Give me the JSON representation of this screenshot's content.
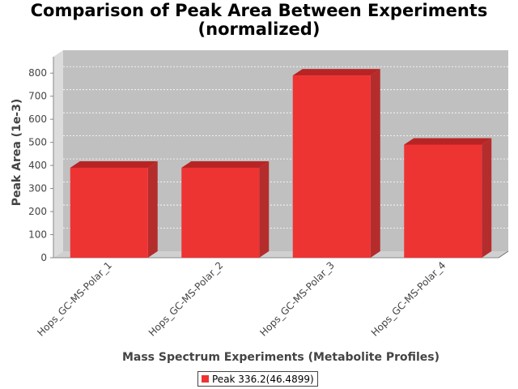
{
  "chart_data": {
    "type": "bar",
    "title_line1": "Comparison of Peak Area Between Experiments",
    "title_line2": "(normalized)",
    "xlabel": "Mass Spectrum Experiments (Metabolite Profiles)",
    "ylabel": "Peak Area (1e-3)",
    "categories": [
      "Hops_GC-MS-Polar_1",
      "Hops_GC-MS-Polar_2",
      "Hops_GC-MS-Polar_3",
      "Hops_GC-MS-Polar_4"
    ],
    "series": [
      {
        "name": "Peak 336.2(46.4899)",
        "values": [
          390,
          390,
          790,
          490
        ]
      }
    ],
    "ylim": [
      0,
      850
    ],
    "yticks": [
      0,
      100,
      200,
      300,
      400,
      500,
      600,
      700,
      800
    ],
    "grid": true,
    "legend_position": "bottom",
    "colors": {
      "bar_front": "#ee3333",
      "bar_top": "#b82424",
      "bar_side": "#b52c2c",
      "plot_back": "#c0c0c0",
      "plot_wall": "#dcdcdc",
      "plot_floor": "#d0d0d0"
    }
  }
}
